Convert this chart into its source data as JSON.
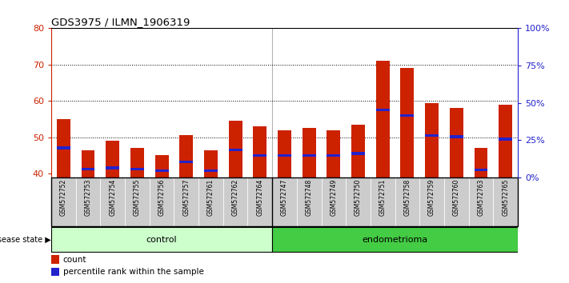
{
  "title": "GDS3975 / ILMN_1906319",
  "samples": [
    "GSM572752",
    "GSM572753",
    "GSM572754",
    "GSM572755",
    "GSM572756",
    "GSM572757",
    "GSM572761",
    "GSM572762",
    "GSM572764",
    "GSM572747",
    "GSM572748",
    "GSM572749",
    "GSM572750",
    "GSM572751",
    "GSM572758",
    "GSM572759",
    "GSM572760",
    "GSM572763",
    "GSM572765"
  ],
  "red_values": [
    55.0,
    46.5,
    49.0,
    47.0,
    45.0,
    50.5,
    46.5,
    54.5,
    53.0,
    52.0,
    52.5,
    52.0,
    53.5,
    71.0,
    69.0,
    59.5,
    58.0,
    47.0,
    59.0
  ],
  "blue_values": [
    47.0,
    41.2,
    41.5,
    41.2,
    40.8,
    43.2,
    40.8,
    46.5,
    45.0,
    45.0,
    45.0,
    45.0,
    45.5,
    57.5,
    56.0,
    50.5,
    50.2,
    41.0,
    49.5
  ],
  "control_count": 9,
  "endometrioma_count": 10,
  "ylim_left": [
    39,
    80
  ],
  "ylim_right": [
    0,
    100
  ],
  "yticks_left": [
    40,
    50,
    60,
    70,
    80
  ],
  "yticks_right": [
    0,
    25,
    50,
    75,
    100
  ],
  "ytick_labels_right": [
    "0%",
    "25%",
    "50%",
    "75%",
    "100%"
  ],
  "bar_color_red": "#cc2200",
  "bar_color_blue": "#2222cc",
  "bar_width": 0.55,
  "control_label": "control",
  "endometrioma_label": "endometrioma",
  "disease_state_label": "disease state",
  "legend_count": "count",
  "legend_percentile": "percentile rank within the sample",
  "control_bg": "#ccffcc",
  "endometrioma_bg": "#44cc44",
  "sample_bg": "#cccccc",
  "grid_color": "black",
  "grid_linestyle": "dotted"
}
